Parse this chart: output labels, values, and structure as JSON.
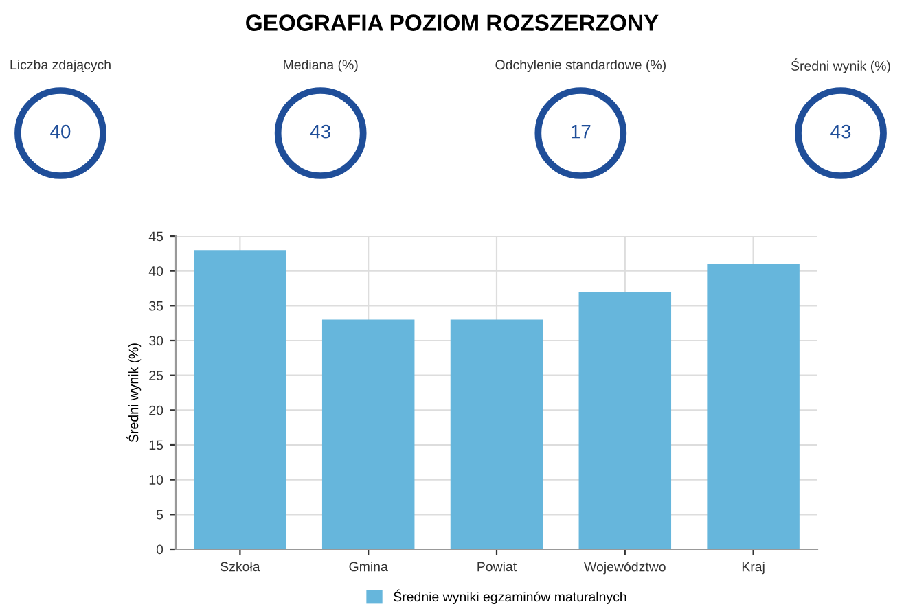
{
  "chart_data": [
    {
      "type": "other",
      "title": "GEOGRAFIA POZIOM ROZSZERZONY",
      "categories": [
        "Liczba zdających",
        "Mediana (%)",
        "Odchylenie standardowe (%)",
        "Średni wynik (%)"
      ],
      "values": [
        40,
        43,
        17,
        43
      ],
      "data_labels": true,
      "color": "#1f4e99"
    },
    {
      "type": "bar",
      "ylabel": "Średni wynik (%)",
      "categories": [
        "Szkoła",
        "Gmina",
        "Powiat",
        "Województwo",
        "Kraj"
      ],
      "series": [
        {
          "name": "Średnie wyniki egzaminów maturalnych",
          "color": "#66b6dc",
          "values": [
            43,
            33,
            33,
            37,
            41
          ]
        }
      ],
      "ylim": [
        0,
        45
      ],
      "yticks": [
        0,
        5,
        10,
        15,
        20,
        25,
        30,
        35,
        40,
        45
      ],
      "grid": true,
      "legend": "bottom"
    }
  ]
}
